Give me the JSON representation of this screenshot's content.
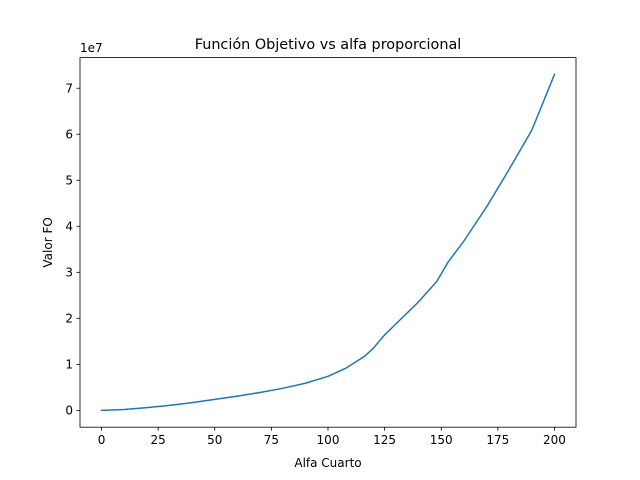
{
  "chart_data": {
    "type": "line",
    "title": "Función Objetivo vs alfa proporcional",
    "xlabel": "Alfa Cuarto",
    "ylabel": "Valor FO",
    "y_offset_label": "1e7",
    "xlim": [
      -9.5,
      209.5
    ],
    "ylim": [
      -0.365,
      7.665
    ],
    "x_ticks": [
      0,
      25,
      50,
      75,
      100,
      125,
      150,
      175,
      200
    ],
    "y_ticks": [
      0,
      1,
      2,
      3,
      4,
      5,
      6,
      7
    ],
    "grid": false,
    "series": [
      {
        "name": "FO",
        "color": "#1f77b4",
        "x": [
          0,
          10,
          20,
          30,
          40,
          50,
          60,
          70,
          80,
          90,
          100,
          108,
          116,
          120,
          125,
          130,
          135,
          140,
          148,
          153,
          160,
          170,
          180,
          190,
          200
        ],
        "y": [
          0.0,
          0.02,
          0.06,
          0.11,
          0.17,
          0.24,
          0.31,
          0.39,
          0.48,
          0.59,
          0.74,
          0.92,
          1.17,
          1.35,
          1.64,
          1.88,
          2.12,
          2.36,
          2.8,
          3.22,
          3.68,
          4.42,
          5.24,
          6.09,
          7.3
        ]
      }
    ]
  }
}
